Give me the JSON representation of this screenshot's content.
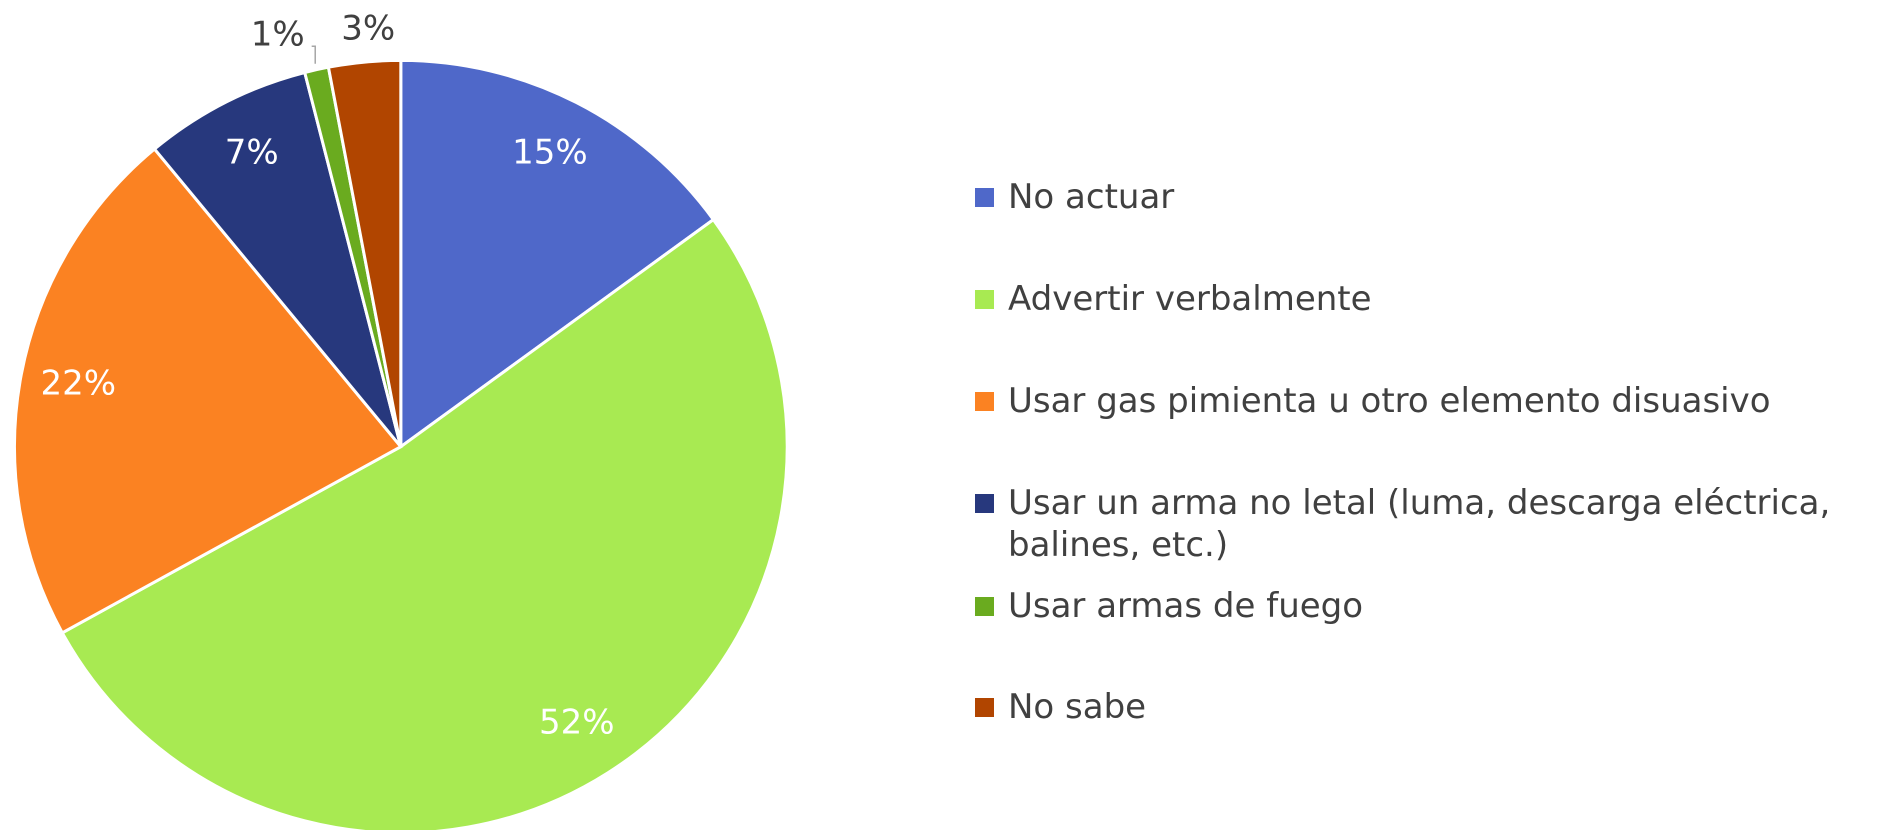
{
  "chart_data": {
    "type": "pie",
    "categories": [
      "No actuar",
      "Advertir verbalmente",
      "Usar gas pimienta u otro elemento disuasivo",
      "Usar un arma no letal (luma, descarga eléctrica, balines, etc.)",
      "Usar armas de fuego",
      "No sabe"
    ],
    "values": [
      15,
      52,
      22,
      7,
      1,
      3
    ],
    "value_labels": [
      "15%",
      "52%",
      "22%",
      "7%",
      "1%",
      "3%"
    ],
    "colors": [
      "#4f68c9",
      "#a8ea52",
      "#fb8222",
      "#27387d",
      "#6aab1f",
      "#b14500"
    ],
    "legend": "right"
  }
}
